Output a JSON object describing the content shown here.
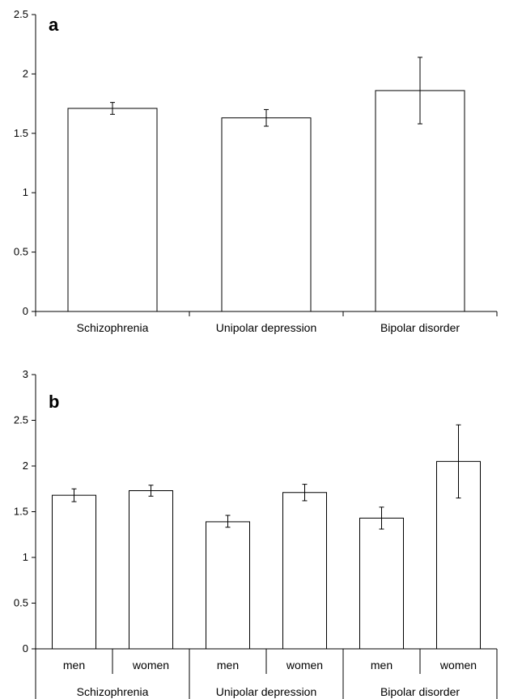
{
  "chart_data": [
    {
      "type": "bar",
      "panel_label": "a",
      "categories": [
        "Schizophrenia",
        "Unipolar depression",
        "Bipolar disorder"
      ],
      "values": [
        1.71,
        1.63,
        1.86
      ],
      "error_low": [
        1.66,
        1.56,
        1.58
      ],
      "error_high": [
        1.76,
        1.7,
        2.14
      ],
      "ylim": [
        0,
        2.5
      ],
      "yticks": [
        "0",
        "0.5",
        "1",
        "1.5",
        "2",
        "2.5"
      ],
      "title": "",
      "xlabel": "",
      "ylabel": "",
      "grid": false,
      "bar_fill": "#ffffff",
      "bar_stroke": "#000000"
    },
    {
      "type": "bar",
      "panel_label": "b",
      "groups": [
        "Schizophrenia",
        "Unipolar depression",
        "Bipolar disorder"
      ],
      "categories": [
        "men",
        "women",
        "men",
        "women",
        "men",
        "women"
      ],
      "values": [
        1.68,
        1.73,
        1.39,
        1.71,
        1.43,
        2.05
      ],
      "error_low": [
        1.61,
        1.67,
        1.33,
        1.62,
        1.31,
        1.65
      ],
      "error_high": [
        1.75,
        1.79,
        1.46,
        1.8,
        1.55,
        2.45
      ],
      "ylim": [
        0,
        3
      ],
      "yticks": [
        "0",
        "0.5",
        "1",
        "1.5",
        "2",
        "2.5",
        "3"
      ],
      "title": "",
      "xlabel": "",
      "ylabel": "",
      "grid": false,
      "bar_fill": "#ffffff",
      "bar_stroke": "#000000"
    }
  ]
}
